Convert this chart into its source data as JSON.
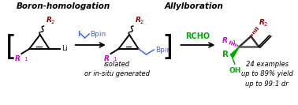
{
  "title1": "Boron-homologation",
  "title2": "Allylboration",
  "bracket_note": "isolated\nor in-situ generated",
  "result_note": "24 examples\nup to 89% yield\nup to 99:1 dr",
  "R1_color": "#cc00cc",
  "R2_color": "#8b0000",
  "bond_color": "#000000",
  "Bpin_color": "#4169e1",
  "I_color": "#4169e1",
  "RCHO_color": "#00aa00",
  "R_color": "#00aa00",
  "OH_color": "#00aa00",
  "arrow_color": "#000000",
  "bg_color": "#ffffff",
  "title_fontsize": 7.5,
  "label_fontsize": 6.5,
  "sub_fontsize": 5.0,
  "note_fontsize": 6.0
}
